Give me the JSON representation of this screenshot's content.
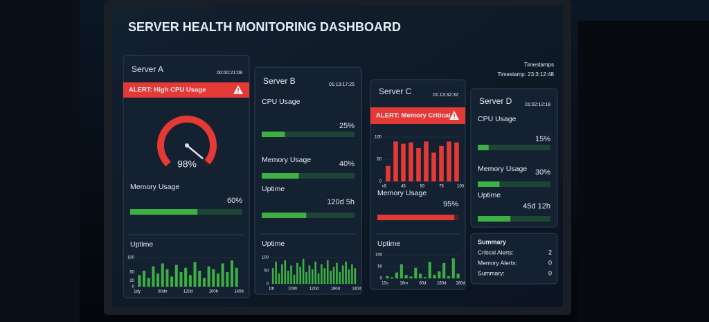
{
  "header": {
    "title": "SERVER HEALTH MONITORING DASHBOARD",
    "timestamps_label": "Timestamps",
    "timestamp": "Timestamp: 23:3:12:48"
  },
  "servers": [
    {
      "name": "Server A",
      "time": "00:00:21:08",
      "alert": "ALERT: High CPU Usage",
      "gauge": {
        "value": 98,
        "label": "98%",
        "color": "#e53935"
      },
      "metrics": [
        {
          "label": "Memory Usage",
          "value": 60,
          "value_label": "60%",
          "color": "#3cb043"
        }
      ],
      "uptime_chart": {
        "label": "Uptime",
        "chart": {
          "type": "bar",
          "color": "#3cb043",
          "values": [
            40,
            55,
            30,
            70,
            45,
            80,
            60,
            35,
            75,
            50,
            65,
            40,
            85,
            55,
            30,
            70,
            60,
            45,
            80,
            50,
            90,
            65
          ],
          "ylim": [
            0,
            100
          ],
          "yticks": [
            0,
            20,
            50,
            100
          ],
          "x_labels": [
            "1dy",
            "50dn",
            "120d",
            "100h",
            "140d"
          ]
        }
      }
    },
    {
      "name": "Server B",
      "time": "01:13:17:25",
      "metrics": [
        {
          "label": "CPU Usage",
          "value": 25,
          "value_label": "25%",
          "color": "#3cb043"
        },
        {
          "label": "Memory Usage",
          "value": 40,
          "value_label": "40%",
          "color": "#3cb043"
        }
      ],
      "uptime": {
        "label": "Uptime",
        "text": "120d 5h"
      },
      "uptime_chart": {
        "label": "Uptime",
        "chart": {
          "type": "bar",
          "color": "#3cb043",
          "values": [
            60,
            85,
            40,
            75,
            90,
            50,
            70,
            35,
            80,
            65,
            95,
            45,
            70,
            55,
            85,
            40,
            75,
            60,
            90,
            50,
            65,
            80,
            45,
            70,
            85,
            55,
            75,
            60
          ],
          "ylim": [
            0,
            100
          ],
          "yticks": [
            0,
            50,
            100
          ],
          "x_labels": [
            "1th",
            "100h",
            "120d",
            "180d",
            "140d"
          ]
        }
      }
    },
    {
      "name": "Server C",
      "time": "01:13:32:32",
      "alert": "ALERT: Memory Critical",
      "cpu_chart": {
        "type": "bar",
        "color": "#e53935",
        "values": [
          35,
          90,
          85,
          88,
          75,
          90,
          65,
          80,
          90,
          88
        ],
        "ylim": [
          0,
          100
        ],
        "yticks": [
          0,
          50,
          100
        ],
        "x_labels": [
          "c5",
          "45",
          "50",
          "75",
          "100"
        ]
      },
      "metrics": [
        {
          "label": "Memory Usage",
          "value": 95,
          "value_label": "95%",
          "color": "#e53935"
        }
      ],
      "uptime_chart": {
        "label": "Uptime",
        "chart": {
          "type": "bar",
          "color": "#3cb043",
          "values": [
            10,
            5,
            25,
            60,
            15,
            8,
            45,
            20,
            5,
            70,
            15,
            30,
            65,
            10,
            85,
            20
          ],
          "ylim": [
            0,
            100
          ],
          "yticks": [
            0,
            50,
            100
          ],
          "x_labels": [
            "10s",
            "16m",
            "80d",
            "160d",
            "180d"
          ]
        }
      }
    },
    {
      "name": "Server D",
      "time": "01:02:12:18",
      "metrics": [
        {
          "label": "CPU Usage",
          "value": 15,
          "value_label": "15%",
          "color": "#3cb043"
        },
        {
          "label": "Memory Usage",
          "value": 30,
          "value_label": "30%",
          "color": "#3cb043"
        }
      ],
      "uptime": {
        "label": "Uptime",
        "text": "45d 12h"
      }
    }
  ],
  "summary": {
    "title": "Summary",
    "rows": [
      {
        "label": "Critical Alerts:",
        "value": 2,
        "color": "#ff4d4d"
      },
      {
        "label": "Memory Alerts:",
        "value": 0,
        "color": "#7ddc7d"
      },
      {
        "label": "Summary:",
        "value": 0,
        "color": "#ffffff"
      }
    ]
  }
}
